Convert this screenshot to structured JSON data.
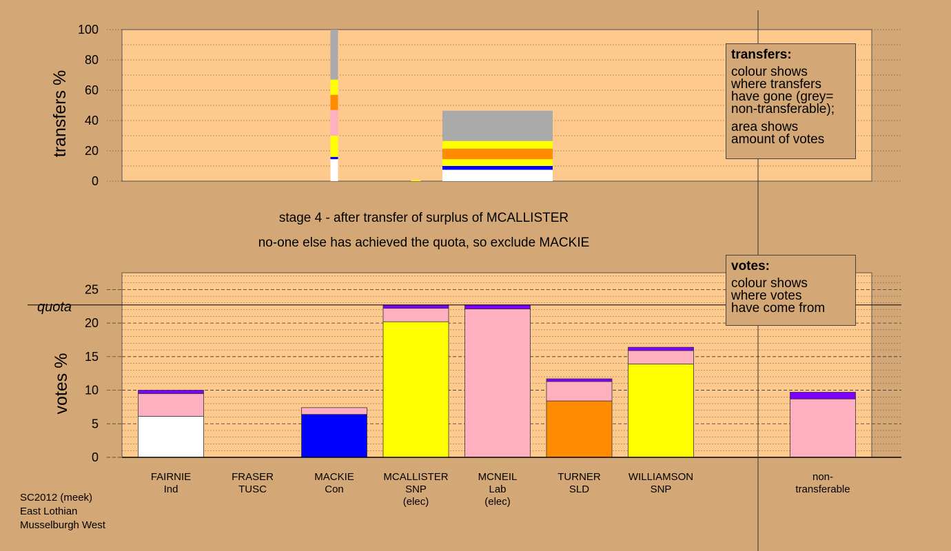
{
  "footer": {
    "line1": "SC2012 (meek)",
    "line2": "East Lothian",
    "line3": "Musselburgh West"
  },
  "stage": {
    "title": "stage 4 - after transfer of surplus of MCALLISTER",
    "subtitle": "no-one else has achieved the quota, so exclude MACKIE"
  },
  "legends": {
    "transfers": {
      "title": "transfers:",
      "lines1": [
        "colour shows",
        "where transfers",
        "have gone (grey=",
        "non-transferable);"
      ],
      "lines2": [
        "area shows",
        "amount of votes"
      ]
    },
    "votes": {
      "title": "votes:",
      "lines": [
        "colour shows",
        "where votes",
        "have come from"
      ]
    }
  },
  "colors": {
    "background": "#d4a876",
    "plot": "#fec98d",
    "white": "#ffffff",
    "blue": "#0000ff",
    "yellow": "#ffff00",
    "orange": "#ff8c00",
    "pink": "#ffb0c0",
    "purple": "#8000ff",
    "grey": "#aaaaaa"
  },
  "chart_data": [
    {
      "type": "bar",
      "ylabel": "transfers %",
      "ylim": [
        0,
        100
      ],
      "yticks": [
        0,
        20,
        40,
        60,
        80,
        100
      ],
      "bars": [
        {
          "from": "MACKIE",
          "slot": 2,
          "segments": [
            {
              "color": "white",
              "value": 14.5
            },
            {
              "color": "blue",
              "value": 1.5
            },
            {
              "color": "yellow",
              "value": 14
            },
            {
              "color": "pink",
              "value": 17
            },
            {
              "color": "orange",
              "value": 10
            },
            {
              "color": "yellow",
              "value": 10
            },
            {
              "color": "grey",
              "value": 33
            }
          ]
        },
        {
          "from": "MCALLISTER",
          "slot": 3,
          "widthFactor": 0.08,
          "segments": [
            {
              "color": "yellow",
              "value": 0.8
            }
          ]
        },
        {
          "from": "MCNEIL",
          "slot": 4,
          "segments": [
            {
              "color": "white",
              "value": 7.5
            },
            {
              "color": "blue",
              "value": 2.5
            },
            {
              "color": "yellow",
              "value": 4.5
            },
            {
              "color": "orange",
              "value": 7
            },
            {
              "color": "yellow",
              "value": 5
            },
            {
              "color": "grey",
              "value": 20
            }
          ]
        }
      ]
    },
    {
      "type": "bar",
      "ylabel": "votes %",
      "ylim": [
        0,
        27.5
      ],
      "yticks": [
        0,
        5,
        10,
        15,
        20,
        25
      ],
      "quota": 22.7,
      "quota_label": "quota",
      "candidates": [
        {
          "name": "FAIRNIE",
          "party": "Ind",
          "note": "",
          "segments": [
            {
              "color": "white",
              "value": 6.1
            },
            {
              "color": "pink",
              "value": 3.4
            },
            {
              "color": "purple",
              "value": 0.5
            }
          ]
        },
        {
          "name": "FRASER",
          "party": "TUSC",
          "note": "",
          "segments": []
        },
        {
          "name": "MACKIE",
          "party": "Con",
          "note": "",
          "segments": [
            {
              "color": "blue",
              "value": 6.4
            },
            {
              "color": "pink",
              "value": 1.0
            }
          ]
        },
        {
          "name": "MCALLISTER",
          "party": "SNP",
          "note": "(elec)",
          "segments": [
            {
              "color": "yellow",
              "value": 20.2
            },
            {
              "color": "pink",
              "value": 2.0
            },
            {
              "color": "purple",
              "value": 0.5
            }
          ]
        },
        {
          "name": "MCNEIL",
          "party": "Lab",
          "note": "(elec)",
          "segments": [
            {
              "color": "pink",
              "value": 22.1
            },
            {
              "color": "purple",
              "value": 0.6
            }
          ]
        },
        {
          "name": "TURNER",
          "party": "SLD",
          "note": "",
          "segments": [
            {
              "color": "orange",
              "value": 8.4
            },
            {
              "color": "pink",
              "value": 2.9
            },
            {
              "color": "purple",
              "value": 0.4
            }
          ]
        },
        {
          "name": "WILLIAMSON",
          "party": "SNP",
          "note": "",
          "segments": [
            {
              "color": "yellow",
              "value": 13.9
            },
            {
              "color": "pink",
              "value": 2.0
            },
            {
              "color": "purple",
              "value": 0.5
            }
          ]
        }
      ],
      "nontransferable": {
        "label1": "non-",
        "label2": "transferable",
        "segments": [
          {
            "color": "pink",
            "value": 8.7
          },
          {
            "color": "purple",
            "value": 1.0
          }
        ]
      }
    }
  ]
}
